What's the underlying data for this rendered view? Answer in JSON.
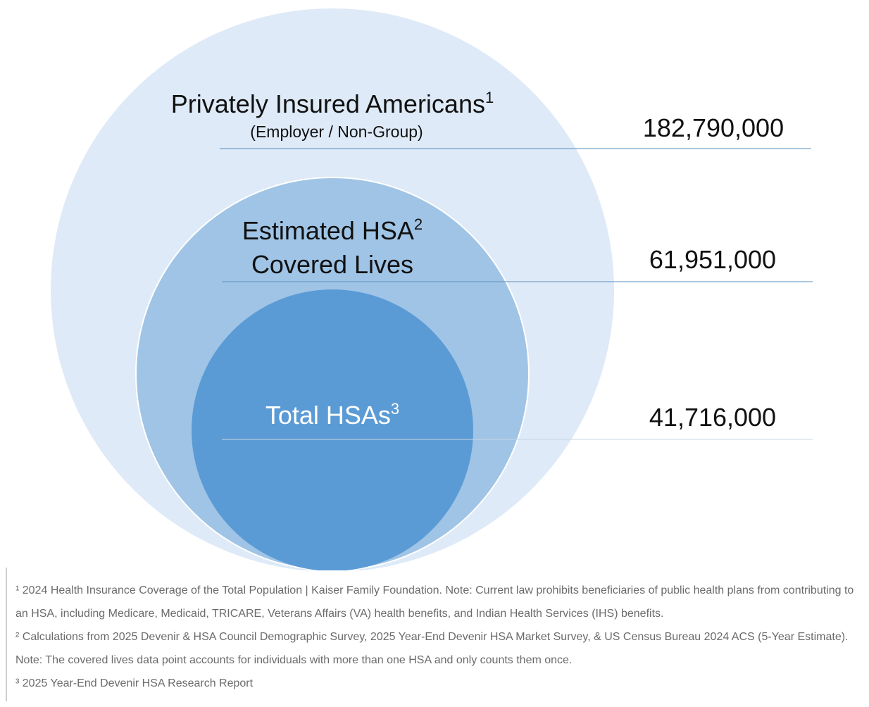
{
  "diagram": {
    "outer": {
      "title": "Privately Insured Americans",
      "superscript": "1",
      "subtitle": "(Employer / Non-Group)",
      "value": "182,790,000",
      "color": "#deeaf7"
    },
    "middle": {
      "title_line1": "Estimated HSA",
      "superscript": "2",
      "title_line2": "Covered Lives",
      "value": "61,951,000",
      "color": "#a0c4e6"
    },
    "inner": {
      "title": "Total HSAs",
      "superscript": "3",
      "value": "41,716,000",
      "color": "#5b9bd5"
    }
  },
  "footnotes": [
    "¹ 2024 Health Insurance Coverage of the Total Population | Kaiser Family Foundation. Note: Current law prohibits beneficiaries of public health plans from contributing to an HSA, including Medicare, Medicaid, TRICARE, Veterans Affairs (VA) health benefits, and Indian Health Services (IHS) benefits.",
    "² Calculations from 2025 Devenir & HSA Council Demographic Survey, 2025 Year-End Devenir HSA Market Survey, & US Census Bureau 2024 ACS (5-Year Estimate). Note: The covered lives data point accounts for individuals with more than one HSA and only counts them once.",
    "³ 2025 Year-End Devenir HSA Research Report"
  ]
}
